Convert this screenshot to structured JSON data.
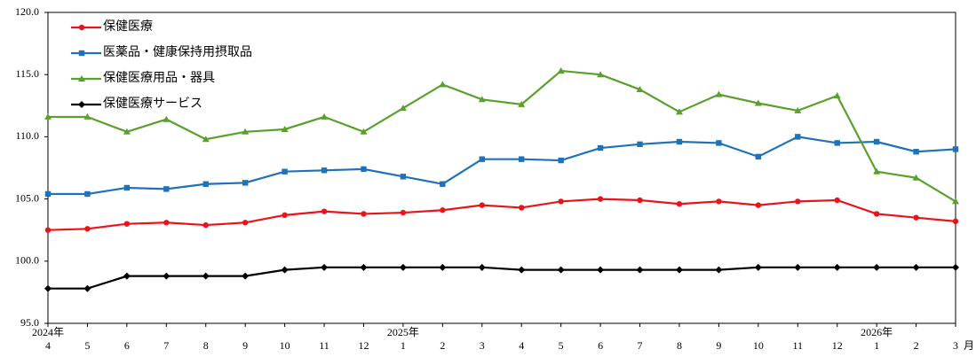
{
  "chart_data": {
    "type": "line",
    "categories": [
      "4",
      "5",
      "6",
      "7",
      "8",
      "9",
      "10",
      "11",
      "12",
      "1",
      "2",
      "3",
      "4",
      "5",
      "6",
      "7",
      "8",
      "9",
      "10",
      "11",
      "12",
      "1",
      "2",
      "3"
    ],
    "x_year_labels": [
      "2024年",
      null,
      null,
      null,
      null,
      null,
      null,
      null,
      null,
      "2025年",
      null,
      null,
      null,
      null,
      null,
      null,
      null,
      null,
      null,
      null,
      null,
      "2026年",
      null,
      null
    ],
    "x_unit": "月",
    "ylim": [
      95,
      120
    ],
    "yticks": [
      {
        "value": 95,
        "label": "95.0"
      },
      {
        "value": 100,
        "label": "100.0"
      },
      {
        "value": 105,
        "label": "105.0"
      },
      {
        "value": 110,
        "label": "110.0"
      },
      {
        "value": 115,
        "label": "115.0"
      },
      {
        "value": 120,
        "label": "120.0"
      }
    ],
    "grid": false,
    "legend": "top-left",
    "series": [
      {
        "name": "保健医療",
        "color": "#e8141b",
        "marker": "circle",
        "values": [
          102.5,
          102.6,
          103.0,
          103.1,
          102.9,
          103.1,
          103.7,
          104.0,
          103.8,
          103.9,
          104.1,
          104.5,
          104.3,
          104.8,
          105.0,
          104.9,
          104.6,
          104.8,
          104.5,
          104.8,
          104.9,
          103.8,
          103.5,
          103.2
        ]
      },
      {
        "name": "医薬品・健康保持用摂取品",
        "color": "#1f72b8",
        "marker": "square",
        "values": [
          105.4,
          105.4,
          105.9,
          105.8,
          106.2,
          106.3,
          107.2,
          107.3,
          107.4,
          106.8,
          106.2,
          108.2,
          108.2,
          108.1,
          109.1,
          109.4,
          109.6,
          109.5,
          108.4,
          110.0,
          109.5,
          109.6,
          108.8,
          109.0
        ]
      },
      {
        "name": "保健医療用品・器具",
        "color": "#5aa02c",
        "marker": "triangle",
        "values": [
          111.6,
          111.6,
          110.4,
          111.4,
          109.8,
          110.4,
          110.6,
          111.6,
          110.4,
          112.3,
          114.2,
          113.0,
          112.6,
          115.3,
          115.0,
          113.8,
          112.0,
          113.4,
          112.7,
          112.1,
          113.3,
          107.2,
          106.7,
          104.8
        ]
      },
      {
        "name": "保健医療サービス",
        "color": "#000000",
        "marker": "diamond",
        "values": [
          97.8,
          97.8,
          98.8,
          98.8,
          98.8,
          98.8,
          99.3,
          99.5,
          99.5,
          99.5,
          99.5,
          99.5,
          99.3,
          99.3,
          99.3,
          99.3,
          99.3,
          99.3,
          99.5,
          99.5,
          99.5,
          99.5,
          99.5,
          99.5
        ]
      }
    ]
  }
}
